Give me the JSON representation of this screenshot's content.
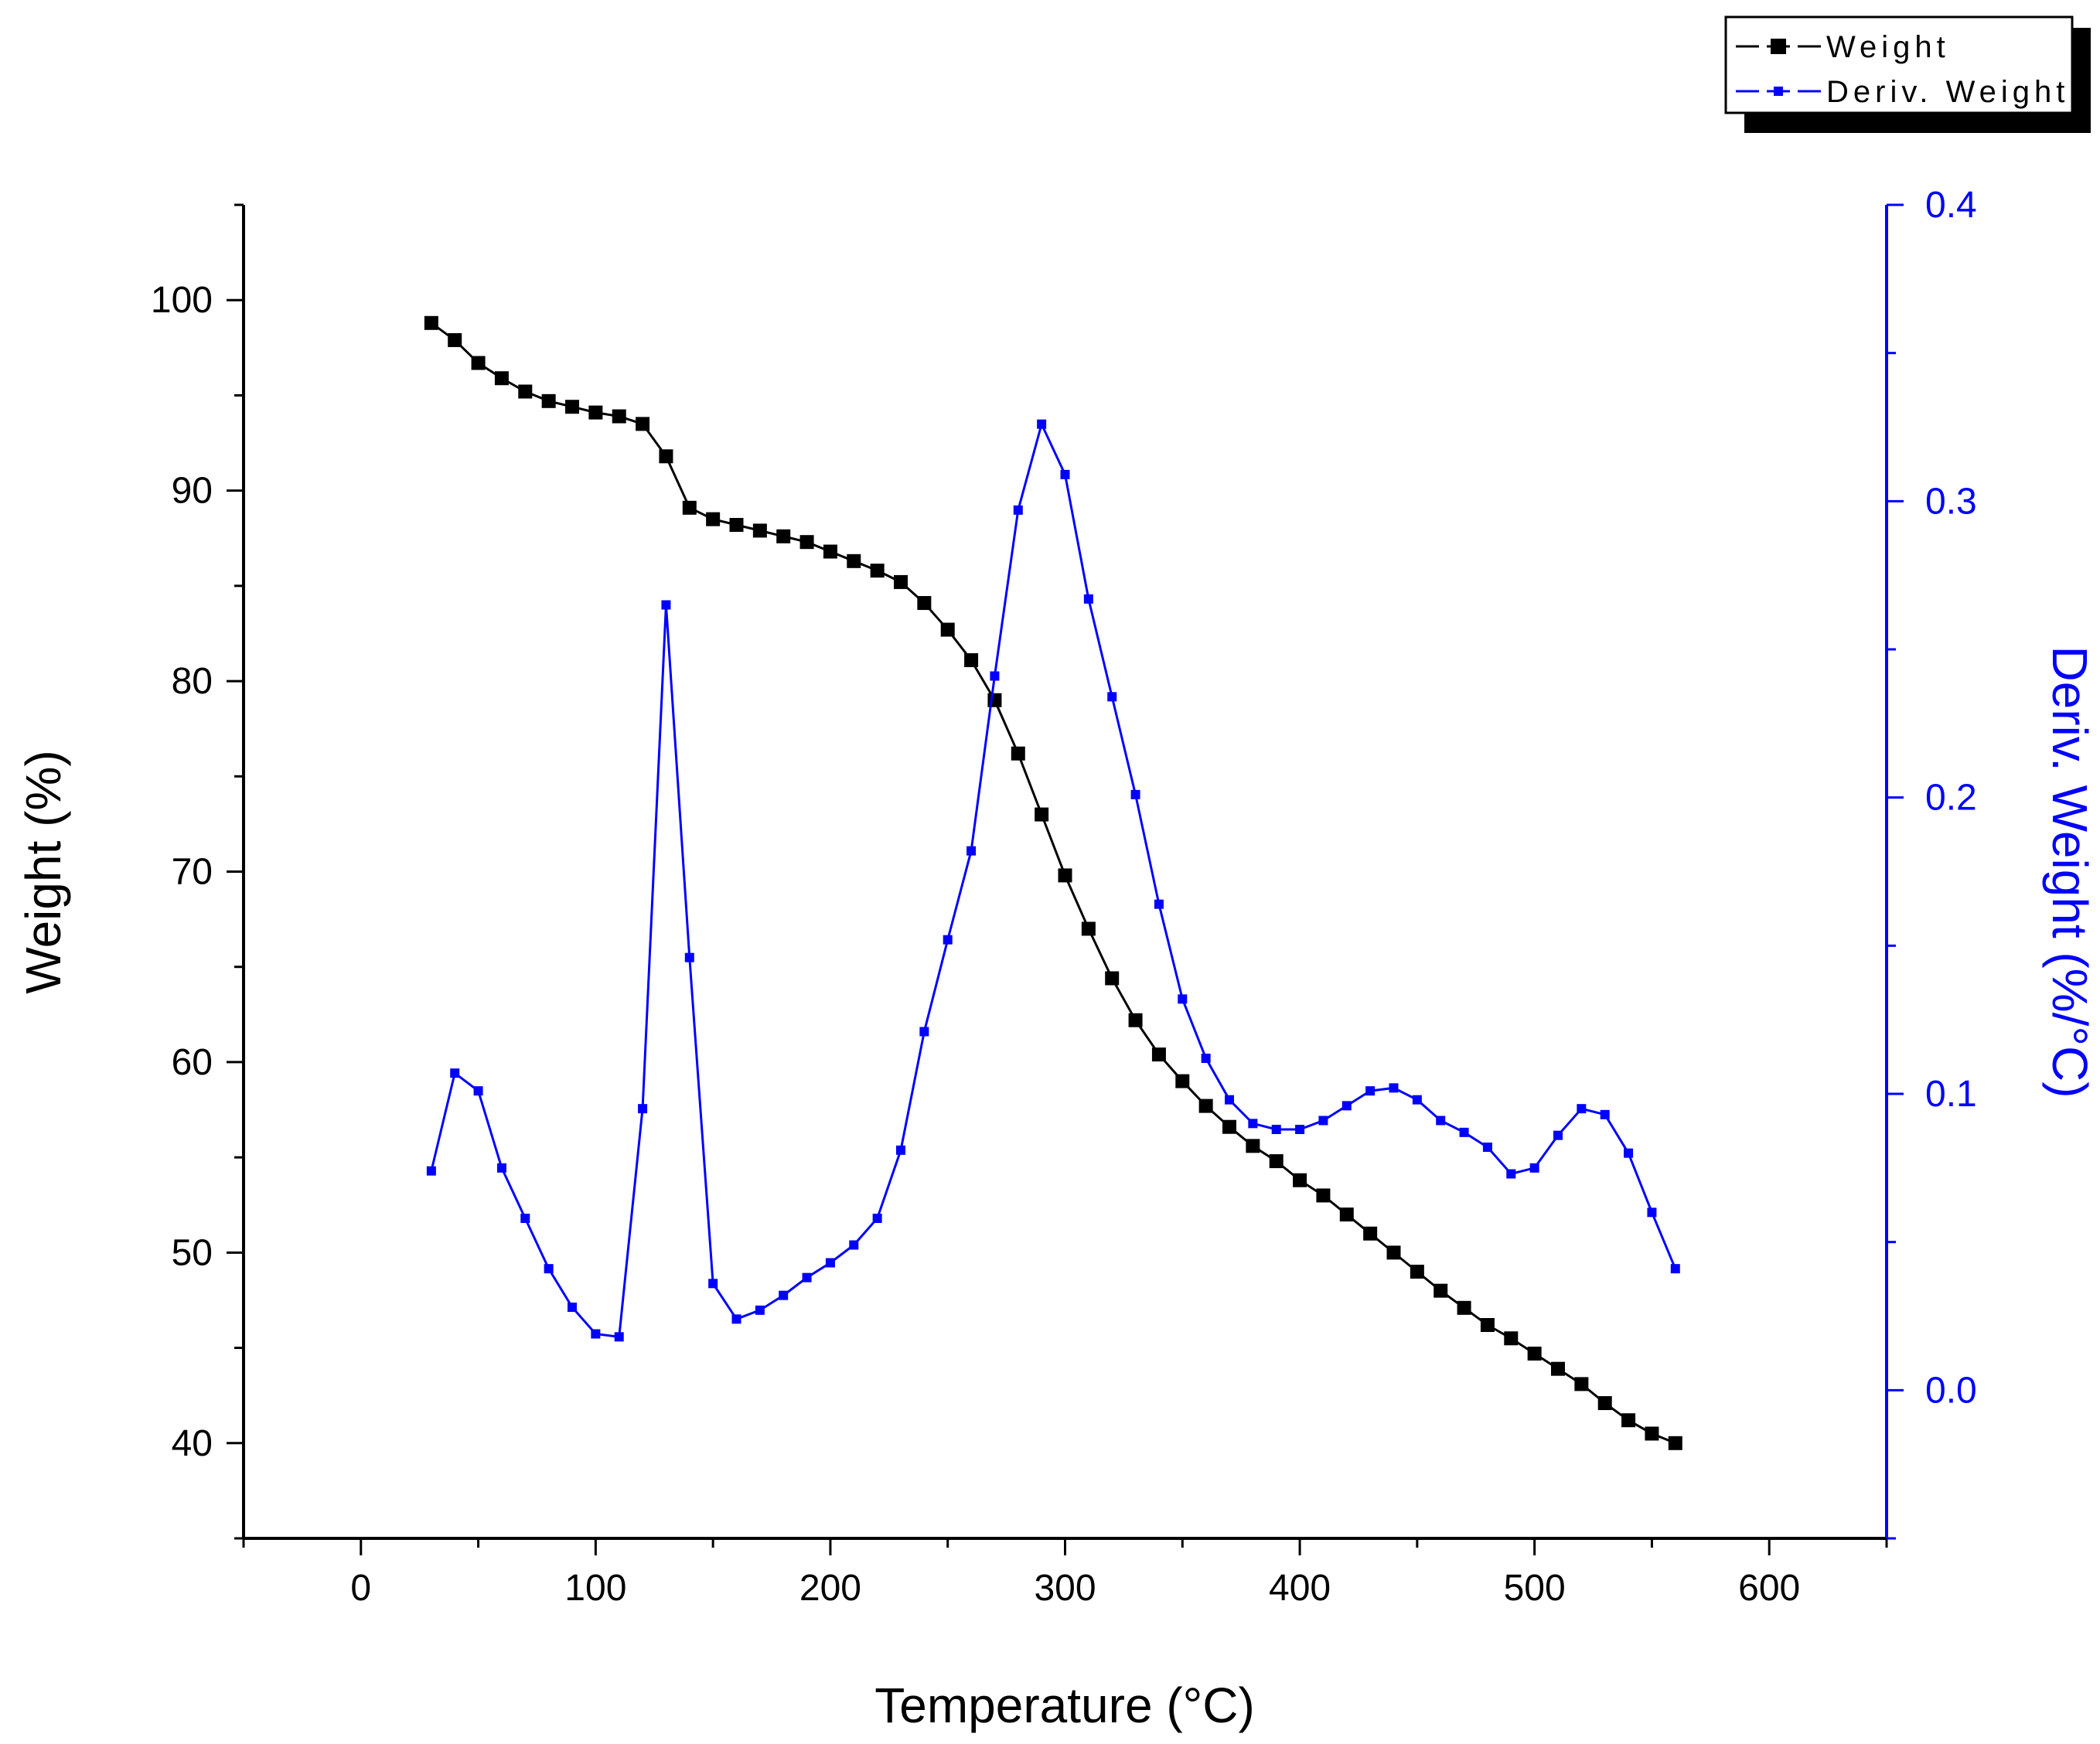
{
  "chart_data": {
    "type": "line",
    "title": "",
    "xlabel": "Temperature (°C)",
    "ylabel_left": "Weight (%)",
    "ylabel_right": "Deriv. Weight (%/°C)",
    "xlim": [
      -50,
      650
    ],
    "ylim_left": [
      35,
      105
    ],
    "ylim_right": [
      -0.05,
      0.4
    ],
    "x_ticks": [
      0,
      100,
      200,
      300,
      400,
      500,
      600
    ],
    "y_left_ticks": [
      40,
      50,
      60,
      70,
      80,
      90,
      100
    ],
    "y_right_ticks": [
      0.0,
      0.1,
      0.2,
      0.3,
      0.4
    ],
    "x_tick_labels": [
      "0",
      "100",
      "200",
      "300",
      "400",
      "500",
      "600"
    ],
    "y_left_tick_labels": [
      "40",
      "50",
      "60",
      "70",
      "80",
      "90",
      "100"
    ],
    "y_right_tick_labels": [
      "0.0",
      "0.1",
      "0.2",
      "0.3",
      "0.4"
    ],
    "legend_position": "top-right",
    "grid": false,
    "x": [
      30,
      40,
      50,
      60,
      70,
      80,
      90,
      100,
      110,
      120,
      130,
      140,
      150,
      160,
      170,
      180,
      190,
      200,
      210,
      220,
      230,
      240,
      250,
      260,
      270,
      280,
      290,
      300,
      310,
      320,
      330,
      340,
      350,
      360,
      370,
      380,
      390,
      400,
      410,
      420,
      430,
      440,
      450,
      460,
      470,
      480,
      490,
      500,
      510,
      520,
      530,
      540,
      550,
      560
    ],
    "series": [
      {
        "name": "Weight",
        "axis": "left",
        "color": "#000000",
        "marker": "square",
        "values": [
          98.8,
          97.9,
          96.7,
          95.9,
          95.2,
          94.7,
          94.4,
          94.1,
          93.9,
          93.5,
          91.8,
          89.1,
          88.5,
          88.2,
          87.9,
          87.6,
          87.3,
          86.8,
          86.3,
          85.8,
          85.2,
          84.1,
          82.7,
          81.1,
          79.0,
          76.2,
          73.0,
          69.8,
          67.0,
          64.4,
          62.2,
          60.4,
          59.0,
          57.7,
          56.6,
          55.6,
          54.8,
          53.8,
          53.0,
          52.0,
          51.0,
          50.0,
          49.0,
          48.0,
          47.1,
          46.2,
          45.5,
          44.7,
          43.9,
          43.1,
          42.1,
          41.2,
          40.5,
          40.0
        ]
      },
      {
        "name": "Deriv. Weight",
        "axis": "right",
        "color": "#0000ff",
        "marker": "dot",
        "values": [
          0.074,
          0.107,
          0.101,
          0.075,
          0.058,
          0.041,
          0.028,
          0.019,
          0.018,
          0.095,
          0.265,
          0.146,
          0.036,
          0.024,
          0.027,
          0.032,
          0.038,
          0.043,
          0.049,
          0.058,
          0.081,
          0.121,
          0.152,
          0.182,
          0.241,
          0.297,
          0.326,
          0.309,
          0.267,
          0.234,
          0.201,
          0.164,
          0.132,
          0.112,
          0.098,
          0.09,
          0.088,
          0.088,
          0.091,
          0.096,
          0.101,
          0.102,
          0.098,
          0.091,
          0.087,
          0.082,
          0.073,
          0.075,
          0.086,
          0.095,
          0.093,
          0.08,
          0.06,
          0.041
        ]
      }
    ]
  }
}
